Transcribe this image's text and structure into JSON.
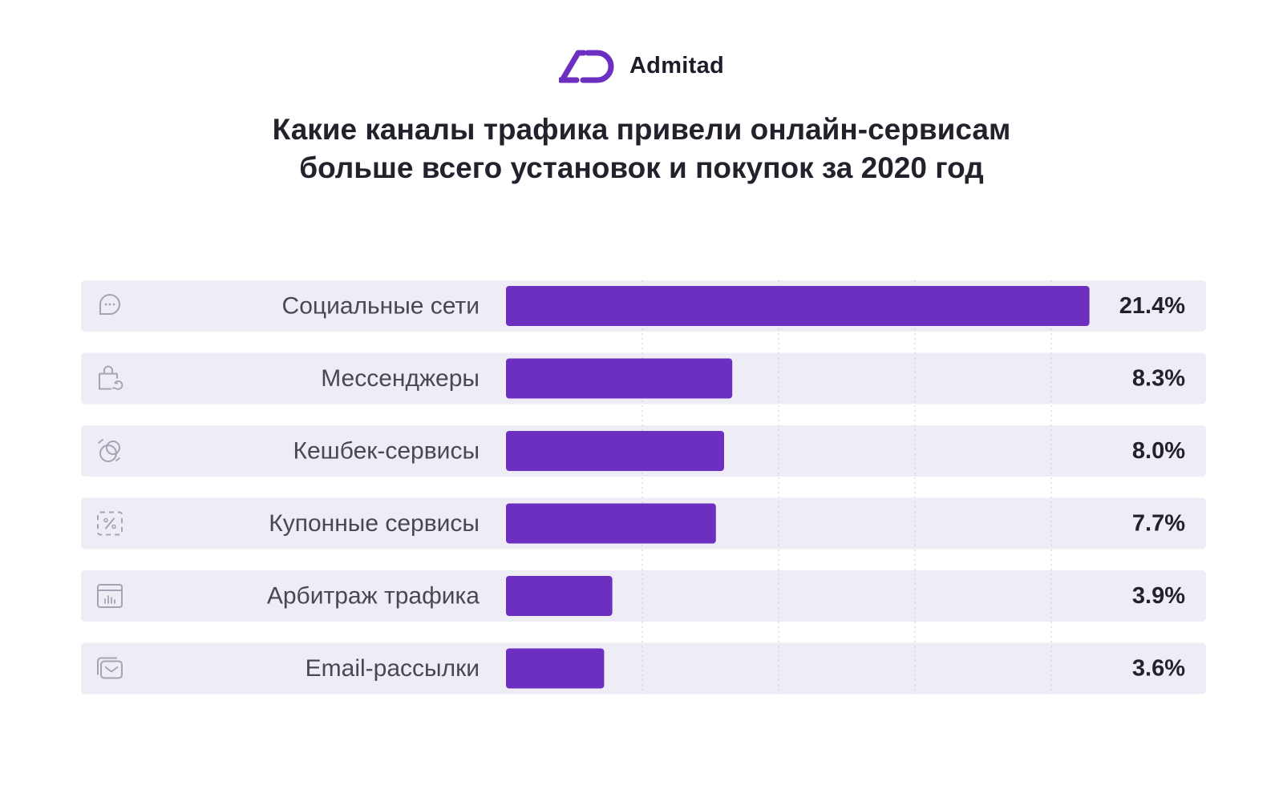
{
  "brand": {
    "name": "Admitad"
  },
  "chart_data": {
    "type": "bar",
    "orientation": "horizontal",
    "title": "Какие каналы трафика привели онлайн-сервисам больше всего установок и покупок за 2020 год",
    "title_lines": [
      "Какие каналы трафика привели онлайн-сервисам",
      "больше всего установок и покупок за 2020 год"
    ],
    "categories": [
      "Социальные сети",
      "Мессенджеры",
      "Кешбек-сервисы",
      "Купонные сервисы",
      "Арбитраж трафика",
      "Email-рассылки"
    ],
    "values": [
      21.4,
      8.3,
      8.0,
      7.7,
      3.9,
      3.6
    ],
    "value_labels": [
      "21.4%",
      "8.3%",
      "8.0%",
      "7.7%",
      "3.9%",
      "3.6%"
    ],
    "icons": [
      "chat-icon",
      "shopping-bag-icon",
      "cashback-icon",
      "coupon-icon",
      "browser-chart-icon",
      "email-icon"
    ],
    "xlim": [
      0,
      22.04
    ],
    "grid": true,
    "grid_ticks": [
      5,
      10,
      15,
      20
    ],
    "colors": {
      "bar": "#6c2fbf",
      "row_bg": "#eeecf5",
      "brand": "#6c2fbf",
      "icon": "#a6a3b5"
    }
  }
}
